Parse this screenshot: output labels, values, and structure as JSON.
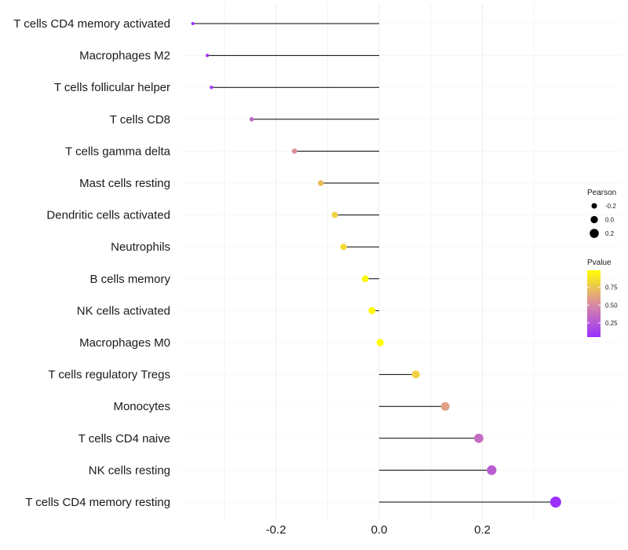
{
  "chart_data": {
    "type": "lollipop",
    "title": "",
    "xlabel": "",
    "ylabel": "",
    "xlim": [
      -0.38,
      0.365
    ],
    "xticks": [
      -0.2,
      0.0,
      0.2
    ],
    "xtick_labels": [
      "-0.2",
      "0.0",
      "0.2"
    ],
    "grid": true,
    "categories": [
      "T cells CD4 memory activated",
      "Macrophages M2",
      "T cells follicular helper",
      "T cells CD8",
      "T cells gamma delta",
      "Mast cells resting",
      "Dendritic cells activated",
      "Neutrophils",
      "B cells memory",
      "NK cells activated",
      "Macrophages M0",
      "T cells regulatory  Tregs ",
      "Monocytes",
      "T cells CD4 naive",
      "NK cells resting",
      "T cells CD4 memory resting"
    ],
    "pearson": [
      -0.361,
      -0.333,
      -0.325,
      -0.247,
      -0.164,
      -0.113,
      -0.086,
      -0.069,
      -0.027,
      -0.014,
      0.002,
      0.071,
      0.128,
      0.193,
      0.218,
      0.342
    ],
    "pvalue": [
      0.05,
      0.1,
      0.11,
      0.33,
      0.54,
      0.72,
      0.8,
      0.84,
      0.95,
      0.97,
      0.99,
      0.8,
      0.6,
      0.36,
      0.28,
      0.05
    ],
    "legend": {
      "position": "right",
      "size_title": "Pearson",
      "size_values": [
        -0.2,
        0.0,
        0.2
      ],
      "size_labels": [
        "-0.2",
        "0.0",
        "0.2"
      ],
      "color_title": "Pvalue",
      "color_values": [
        0.25,
        0.5,
        0.75
      ],
      "color_labels": [
        "0.25",
        "0.50",
        "0.75"
      ],
      "color_range": [
        0.05,
        0.99
      ],
      "color_low": "#9b30ff",
      "color_mid": "#d98ca0",
      "color_high": "#ffff00"
    },
    "segment_color": "#000000",
    "grid_color": "#ececec"
  }
}
